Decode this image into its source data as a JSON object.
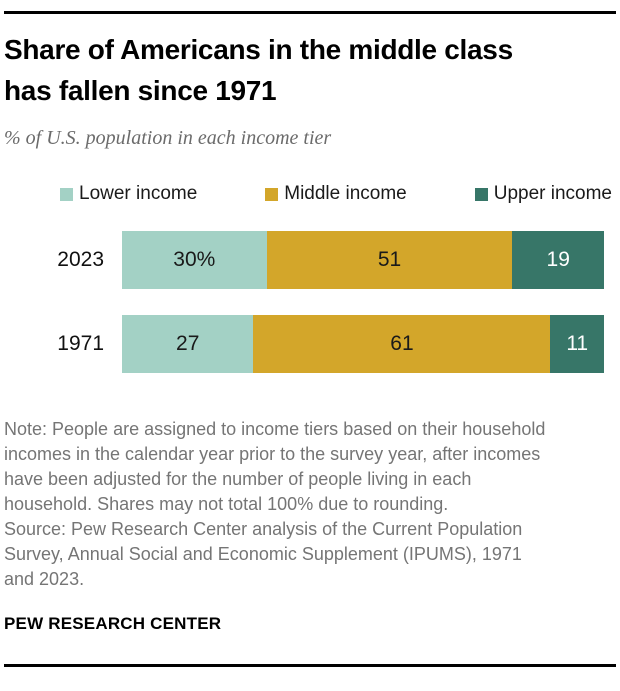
{
  "header": {
    "title_lines": [
      "Share of Americans in the middle class",
      "has fallen since 1971"
    ],
    "subtitle": "% of U.S. population in each income tier"
  },
  "colors": {
    "lower_income": "#a3d1c5",
    "middle_income": "#d3a62a",
    "upper_income": "#377668",
    "note_text": "#757575",
    "rule": "#000000"
  },
  "chart_data": {
    "type": "bar",
    "orientation": "horizontal",
    "stacked": true,
    "title": "Share of Americans in the middle class has fallen since 1971",
    "subtitle": "% of U.S. population in each income tier",
    "categories": [
      "2023",
      "1971"
    ],
    "series": [
      {
        "name": "Lower income",
        "color": "#a3d1c5",
        "values": [
          30,
          27
        ]
      },
      {
        "name": "Middle income",
        "color": "#d3a62a",
        "values": [
          51,
          61
        ]
      },
      {
        "name": "Upper income",
        "color": "#377668",
        "values": [
          19,
          11
        ]
      }
    ],
    "value_labels": [
      [
        "30%",
        "51",
        "19"
      ],
      [
        "27",
        "61",
        "11"
      ]
    ],
    "xlim": [
      0,
      100
    ],
    "grid": false,
    "legend_position": "top"
  },
  "notes": {
    "lines": [
      "Note: People are assigned to income tiers based on their household",
      "incomes in the calendar year prior to the survey year, after incomes",
      "have been adjusted for the number of people living in each",
      "household. Shares may not total 100% due to rounding.",
      "Source: Pew Research Center analysis of the Current Population",
      "Survey, Annual Social and Economic Supplement (IPUMS), 1971",
      "and 2023."
    ]
  },
  "footer": {
    "brand": "PEW RESEARCH CENTER"
  }
}
